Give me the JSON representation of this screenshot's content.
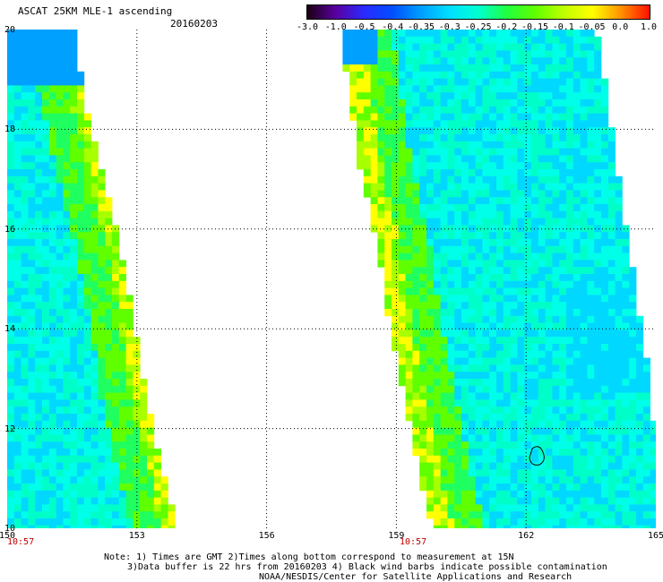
{
  "header": {
    "title": "ASCAT 25KM MLE-1 ascending",
    "date": "20160203"
  },
  "colorbar": {
    "labels": [
      "-3.0",
      "-1.0",
      "-0.5",
      "-0.4",
      "-0.35",
      "-0.3",
      "-0.25",
      "-0.2",
      "-0.15",
      "-0.1",
      "-0.05",
      "0.0",
      "1.0"
    ],
    "colors": [
      "#1a0010",
      "#5a00a0",
      "#2a2aff",
      "#0050ff",
      "#00a0ff",
      "#00e0ff",
      "#00ffd0",
      "#20ff40",
      "#60ff00",
      "#c0ff00",
      "#ffff00",
      "#ff9000",
      "#ff1000"
    ]
  },
  "map": {
    "lon_range": [
      150,
      165
    ],
    "lat_range": [
      10,
      20
    ],
    "x_ticks": [
      "150",
      "153",
      "156",
      "159",
      "162",
      "165"
    ],
    "y_ticks": [
      "20",
      "18",
      "16",
      "14",
      "12",
      "10"
    ],
    "times": [
      "10:57",
      "10:57"
    ],
    "grid": true
  },
  "notes": {
    "line1": "Note: 1) Times are GMT 2)Times along bottom correspond to measurement at 15N",
    "line2": "3)Data buffer is 22 hrs from 20160203 4) Black wind barbs indicate possible contamination",
    "line3": "NOAA/NESDIS/Center for Satellite Applications and Research"
  }
}
